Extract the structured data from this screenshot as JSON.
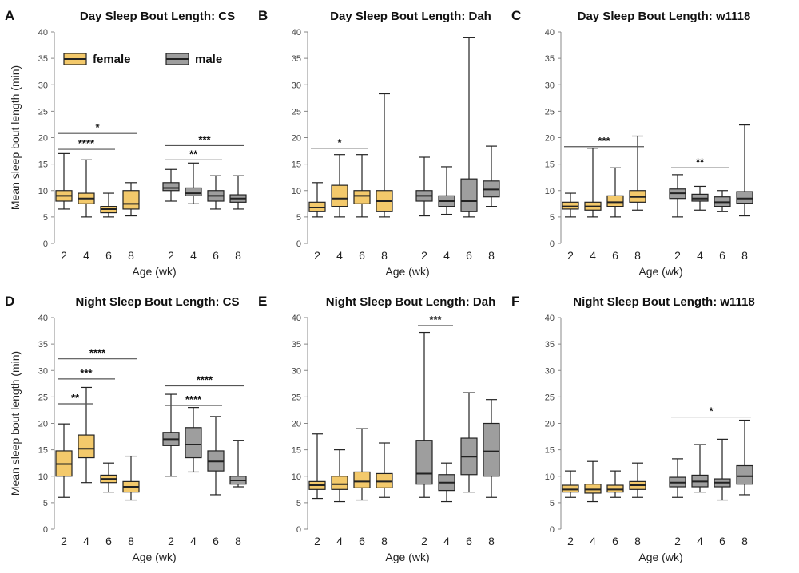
{
  "colors": {
    "female": "#f3c96b",
    "male": "#9e9e9e",
    "edge": "#222222",
    "axis": "#888888"
  },
  "legend": [
    {
      "label": "female",
      "color": "#f3c96b"
    },
    {
      "label": "male",
      "color": "#9e9e9e"
    }
  ],
  "chart_data": [
    {
      "panel": "A",
      "type": "box",
      "title": "Day Sleep Bout Length: CS",
      "ylabel": "Mean sleep bout length (min)",
      "xlabel": "Age (wk)",
      "ylim": [
        0,
        40
      ],
      "yticks": [
        0,
        5,
        10,
        15,
        20,
        25,
        30,
        35,
        40
      ],
      "categories": [
        "2",
        "4",
        "6",
        "8"
      ],
      "show_legend": true,
      "series": [
        {
          "name": "female",
          "boxes": [
            {
              "min": 6.5,
              "q1": 8,
              "median": 9,
              "q3": 10,
              "max": 17
            },
            {
              "min": 5,
              "q1": 7.5,
              "median": 8.5,
              "q3": 9.5,
              "max": 15.8
            },
            {
              "min": 5,
              "q1": 5.8,
              "median": 6.5,
              "q3": 7,
              "max": 9.5
            },
            {
              "min": 5.2,
              "q1": 6.5,
              "median": 7.5,
              "q3": 10,
              "max": 11.5
            }
          ]
        },
        {
          "name": "male",
          "boxes": [
            {
              "min": 8,
              "q1": 10,
              "median": 10.5,
              "q3": 11.5,
              "max": 14
            },
            {
              "min": 7.5,
              "q1": 9,
              "median": 9.5,
              "q3": 10.5,
              "max": 15.2
            },
            {
              "min": 6.5,
              "q1": 8,
              "median": 9,
              "q3": 10,
              "max": 12.8
            },
            {
              "min": 6.5,
              "q1": 7.8,
              "median": 8.5,
              "q3": 9.2,
              "max": 12.8
            }
          ]
        }
      ],
      "significance": [
        {
          "label": "*",
          "y": 20.8,
          "from": [
            "female",
            0
          ],
          "to": [
            "female",
            3
          ]
        },
        {
          "label": "****",
          "y": 17.8,
          "from": [
            "female",
            0
          ],
          "to": [
            "female",
            2
          ]
        },
        {
          "label": "***",
          "y": 18.5,
          "from": [
            "male",
            0
          ],
          "to": [
            "male",
            3
          ]
        },
        {
          "label": "**",
          "y": 15.8,
          "from": [
            "male",
            0
          ],
          "to": [
            "male",
            2
          ]
        }
      ]
    },
    {
      "panel": "B",
      "type": "box",
      "title": "Day Sleep Bout Length: Dah",
      "ylabel": "",
      "xlabel": "Age (wk)",
      "ylim": [
        0,
        40
      ],
      "yticks": [
        0,
        5,
        10,
        15,
        20,
        25,
        30,
        35,
        40
      ],
      "categories": [
        "2",
        "4",
        "6",
        "8"
      ],
      "show_legend": false,
      "series": [
        {
          "name": "female",
          "boxes": [
            {
              "min": 5,
              "q1": 6,
              "median": 6.8,
              "q3": 7.8,
              "max": 11.5
            },
            {
              "min": 5,
              "q1": 7,
              "median": 8.5,
              "q3": 11,
              "max": 16.8
            },
            {
              "min": 5,
              "q1": 7.5,
              "median": 9,
              "q3": 10,
              "max": 16.8
            },
            {
              "min": 5,
              "q1": 6,
              "median": 8,
              "q3": 10,
              "max": 28.3
            }
          ]
        },
        {
          "name": "male",
          "boxes": [
            {
              "min": 5.2,
              "q1": 8,
              "median": 9,
              "q3": 10,
              "max": 16.3
            },
            {
              "min": 5.5,
              "q1": 7,
              "median": 8,
              "q3": 9,
              "max": 14.5
            },
            {
              "min": 5,
              "q1": 6,
              "median": 8,
              "q3": 12.2,
              "max": 39
            },
            {
              "min": 7,
              "q1": 8.8,
              "median": 10.2,
              "q3": 11.8,
              "max": 18.4
            }
          ]
        }
      ],
      "significance": [
        {
          "label": "*",
          "y": 18,
          "from": [
            "female",
            0
          ],
          "to": [
            "female",
            2
          ]
        }
      ]
    },
    {
      "panel": "C",
      "type": "box",
      "title": "Day Sleep Bout Length: w1118",
      "ylabel": "",
      "xlabel": "Age (wk)",
      "ylim": [
        0,
        40
      ],
      "yticks": [
        0,
        5,
        10,
        15,
        20,
        25,
        30,
        35,
        40
      ],
      "categories": [
        "2",
        "4",
        "6",
        "8"
      ],
      "show_legend": false,
      "series": [
        {
          "name": "female",
          "boxes": [
            {
              "min": 5,
              "q1": 6.5,
              "median": 7,
              "q3": 7.8,
              "max": 9.5
            },
            {
              "min": 5,
              "q1": 6.3,
              "median": 7,
              "q3": 7.8,
              "max": 18
            },
            {
              "min": 5,
              "q1": 7,
              "median": 7.8,
              "q3": 9,
              "max": 14.3
            },
            {
              "min": 6.3,
              "q1": 7.8,
              "median": 8.8,
              "q3": 10,
              "max": 20.3
            }
          ]
        },
        {
          "name": "male",
          "boxes": [
            {
              "min": 5,
              "q1": 8.5,
              "median": 9.5,
              "q3": 10.3,
              "max": 13
            },
            {
              "min": 6.3,
              "q1": 8,
              "median": 8.5,
              "q3": 9.3,
              "max": 10.8
            },
            {
              "min": 6,
              "q1": 7,
              "median": 7.8,
              "q3": 8.8,
              "max": 10
            },
            {
              "min": 5.2,
              "q1": 7.6,
              "median": 8.5,
              "q3": 9.8,
              "max": 22.4
            }
          ]
        }
      ],
      "significance": [
        {
          "label": "***",
          "y": 18.3,
          "from": [
            "female",
            0
          ],
          "to": [
            "female",
            3
          ]
        },
        {
          "label": "**",
          "y": 14.3,
          "from": [
            "male",
            0
          ],
          "to": [
            "male",
            2
          ]
        }
      ]
    },
    {
      "panel": "D",
      "type": "box",
      "title": "Night Sleep Bout Length: CS",
      "ylabel": "Mean sleep bout length (min)",
      "xlabel": "Age (wk)",
      "ylim": [
        0,
        40
      ],
      "yticks": [
        0,
        5,
        10,
        15,
        20,
        25,
        30,
        35,
        40
      ],
      "categories": [
        "2",
        "4",
        "6",
        "8"
      ],
      "show_legend": false,
      "series": [
        {
          "name": "female",
          "boxes": [
            {
              "min": 6,
              "q1": 10,
              "median": 12.3,
              "q3": 14.8,
              "max": 19.9
            },
            {
              "min": 8.8,
              "q1": 13.5,
              "median": 15.2,
              "q3": 17.8,
              "max": 26.8
            },
            {
              "min": 7,
              "q1": 8.8,
              "median": 9.5,
              "q3": 10.2,
              "max": 12.5
            },
            {
              "min": 5.5,
              "q1": 7,
              "median": 8,
              "q3": 9,
              "max": 13.8
            }
          ]
        },
        {
          "name": "male",
          "boxes": [
            {
              "min": 10,
              "q1": 15.8,
              "median": 17,
              "q3": 18.3,
              "max": 25.5
            },
            {
              "min": 10.8,
              "q1": 13.5,
              "median": 16,
              "q3": 19.2,
              "max": 23
            },
            {
              "min": 6.5,
              "q1": 11,
              "median": 12.8,
              "q3": 14.8,
              "max": 21.3
            },
            {
              "min": 8,
              "q1": 8.5,
              "median": 9.2,
              "q3": 10,
              "max": 16.8
            }
          ]
        }
      ],
      "significance": [
        {
          "label": "****",
          "y": 32.2,
          "from": [
            "female",
            0
          ],
          "to": [
            "female",
            3
          ]
        },
        {
          "label": "***",
          "y": 28.4,
          "from": [
            "female",
            0
          ],
          "to": [
            "female",
            2
          ]
        },
        {
          "label": "**",
          "y": 23.7,
          "from": [
            "female",
            0
          ],
          "to": [
            "female",
            1
          ]
        },
        {
          "label": "****",
          "y": 27.1,
          "from": [
            "male",
            0
          ],
          "to": [
            "male",
            3
          ]
        },
        {
          "label": "****",
          "y": 23.4,
          "from": [
            "male",
            0
          ],
          "to": [
            "male",
            2
          ]
        }
      ]
    },
    {
      "panel": "E",
      "type": "box",
      "title": "Night Sleep Bout Length: Dah",
      "ylabel": "",
      "xlabel": "Age (wk)",
      "ylim": [
        0,
        40
      ],
      "yticks": [
        0,
        5,
        10,
        15,
        20,
        25,
        30,
        35,
        40
      ],
      "categories": [
        "2",
        "4",
        "6",
        "8"
      ],
      "show_legend": false,
      "series": [
        {
          "name": "female",
          "boxes": [
            {
              "min": 5.8,
              "q1": 7.5,
              "median": 8.3,
              "q3": 9,
              "max": 18
            },
            {
              "min": 5.2,
              "q1": 7.5,
              "median": 8.5,
              "q3": 10,
              "max": 15
            },
            {
              "min": 5.5,
              "q1": 7.8,
              "median": 9,
              "q3": 10.8,
              "max": 19
            },
            {
              "min": 6,
              "q1": 7.8,
              "median": 9,
              "q3": 10.5,
              "max": 16.3
            }
          ]
        },
        {
          "name": "male",
          "boxes": [
            {
              "min": 6,
              "q1": 8.5,
              "median": 10.5,
              "q3": 16.8,
              "max": 37.2
            },
            {
              "min": 5.2,
              "q1": 7.3,
              "median": 8.8,
              "q3": 10.3,
              "max": 12.5
            },
            {
              "min": 7,
              "q1": 10.3,
              "median": 13.7,
              "q3": 17.2,
              "max": 25.8
            },
            {
              "min": 6,
              "q1": 10,
              "median": 14.7,
              "q3": 20,
              "max": 24.5
            }
          ]
        }
      ],
      "significance": [
        {
          "label": "***",
          "y": 38.5,
          "from": [
            "male",
            0
          ],
          "to": [
            "male",
            1
          ]
        }
      ]
    },
    {
      "panel": "F",
      "type": "box",
      "title": "Night Sleep Bout Length: w1118",
      "ylabel": "",
      "xlabel": "Age (wk)",
      "ylim": [
        0,
        40
      ],
      "yticks": [
        0,
        5,
        10,
        15,
        20,
        25,
        30,
        35,
        40
      ],
      "categories": [
        "2",
        "4",
        "6",
        "8"
      ],
      "show_legend": false,
      "series": [
        {
          "name": "female",
          "boxes": [
            {
              "min": 6,
              "q1": 7,
              "median": 7.5,
              "q3": 8.3,
              "max": 11
            },
            {
              "min": 5.2,
              "q1": 6.8,
              "median": 7.5,
              "q3": 8.5,
              "max": 12.8
            },
            {
              "min": 6,
              "q1": 7,
              "median": 7.5,
              "q3": 8.3,
              "max": 11
            },
            {
              "min": 6,
              "q1": 7.5,
              "median": 8.3,
              "q3": 9,
              "max": 12.5
            }
          ]
        },
        {
          "name": "male",
          "boxes": [
            {
              "min": 6,
              "q1": 8,
              "median": 8.8,
              "q3": 9.8,
              "max": 13.3
            },
            {
              "min": 7,
              "q1": 8,
              "median": 9,
              "q3": 10.2,
              "max": 16
            },
            {
              "min": 5.5,
              "q1": 8,
              "median": 8.8,
              "q3": 9.5,
              "max": 17
            },
            {
              "min": 6.5,
              "q1": 8.5,
              "median": 10,
              "q3": 12,
              "max": 20.6
            }
          ]
        }
      ],
      "significance": [
        {
          "label": "*",
          "y": 21.2,
          "from": [
            "male",
            0
          ],
          "to": [
            "male",
            3
          ]
        }
      ]
    }
  ]
}
